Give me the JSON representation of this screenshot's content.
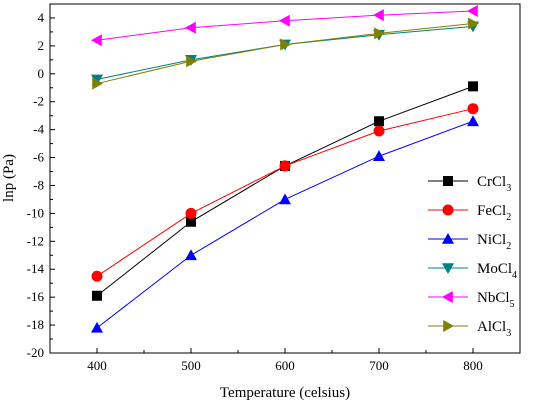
{
  "chart_data": {
    "type": "line",
    "title": "",
    "xlabel": "Temperature (celsius)",
    "ylabel": "lnp (Pa)",
    "x": [
      400,
      500,
      600,
      700,
      800
    ],
    "xlim": [
      350,
      850
    ],
    "ylim": [
      -20,
      5
    ],
    "xticks": [
      400,
      500,
      600,
      700,
      800
    ],
    "yticks": [
      -20,
      -18,
      -16,
      -14,
      -12,
      -10,
      -8,
      -6,
      -4,
      -2,
      0,
      2,
      4
    ],
    "grid": false,
    "legend_position": "right",
    "series": [
      {
        "name": "CrCl3",
        "label_base": "CrCl",
        "label_sub": "3",
        "color": "#000000",
        "marker": "square",
        "values": [
          -15.9,
          -10.6,
          -6.6,
          -3.4,
          -0.9
        ]
      },
      {
        "name": "FeCl2",
        "label_base": "FeCl",
        "label_sub": "2",
        "color": "#ff0000",
        "marker": "circle",
        "values": [
          -14.5,
          -10.0,
          -6.6,
          -4.1,
          -2.5
        ]
      },
      {
        "name": "NiCl2",
        "label_base": "NiCl",
        "label_sub": "2",
        "color": "#0000ff",
        "marker": "triangle-up",
        "values": [
          -18.2,
          -13.0,
          -9.0,
          -5.9,
          -3.4
        ]
      },
      {
        "name": "MoCl4",
        "label_base": "MoCl",
        "label_sub": "4",
        "color": "#008080",
        "marker": "triangle-down",
        "values": [
          -0.4,
          1.0,
          2.1,
          2.8,
          3.4
        ]
      },
      {
        "name": "NbCl5",
        "label_base": "NbCl",
        "label_sub": "5",
        "color": "#ff00ff",
        "marker": "triangle-left",
        "values": [
          2.4,
          3.3,
          3.8,
          4.2,
          4.5
        ]
      },
      {
        "name": "AlCl3",
        "label_base": "AlCl",
        "label_sub": "3",
        "color": "#808000",
        "marker": "triangle-right",
        "values": [
          -0.7,
          0.9,
          2.1,
          2.9,
          3.6
        ]
      }
    ]
  }
}
